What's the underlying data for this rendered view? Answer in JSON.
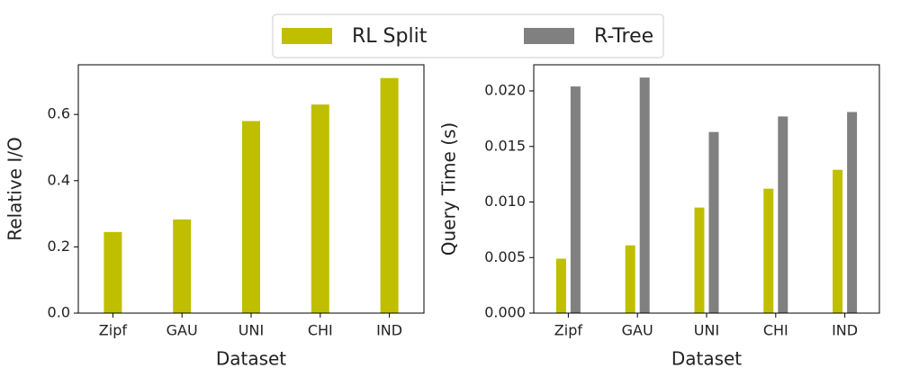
{
  "chart_data": [
    {
      "type": "bar",
      "x_label": "Dataset",
      "y_label": "Relative I/O",
      "categories": [
        "Zipf",
        "GAU",
        "UNI",
        "CHI",
        "IND"
      ],
      "values": [
        0.245,
        0.283,
        0.58,
        0.63,
        0.71
      ],
      "color": "#bfbf00",
      "ylim": [
        0,
        0.75
      ],
      "yticks": [
        {
          "value": 0,
          "label": "0.0"
        },
        {
          "value": 0.2,
          "label": "0.2"
        },
        {
          "value": 0.4,
          "label": "0.4"
        },
        {
          "value": 0.6,
          "label": "0.6"
        }
      ]
    },
    {
      "type": "grouped-bar",
      "x_label": "Dataset",
      "y_label": "Query Time (s)",
      "categories": [
        "Zipf",
        "GAU",
        "UNI",
        "CHI",
        "IND"
      ],
      "series": [
        {
          "name": "RL Split",
          "color": "#bfbf00",
          "values": [
            0.0049,
            0.0061,
            0.0095,
            0.0112,
            0.0129
          ]
        },
        {
          "name": "R-Tree",
          "color": "#808080",
          "values": [
            0.0204,
            0.0212,
            0.0163,
            0.0177,
            0.0181
          ]
        }
      ],
      "ylim": [
        0,
        0.02235
      ],
      "yticks": [
        {
          "value": 0,
          "label": "0.000"
        },
        {
          "value": 0.005,
          "label": "0.005"
        },
        {
          "value": 0.01,
          "label": "0.010"
        },
        {
          "value": 0.015,
          "label": "0.015"
        },
        {
          "value": 0.02,
          "label": "0.020"
        }
      ],
      "legend": "top"
    }
  ]
}
